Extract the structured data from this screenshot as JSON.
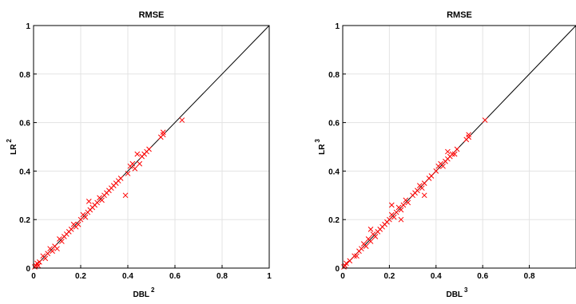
{
  "chart_data": [
    {
      "type": "scatter",
      "title": "RMSE",
      "xlabel": {
        "base": "DBL",
        "sup": "2"
      },
      "ylabel": {
        "base": "LR",
        "sup": "2"
      },
      "xlim": [
        0,
        1
      ],
      "ylim": [
        0,
        1
      ],
      "xticks": [
        "0",
        "0.2",
        "0.4",
        "0.6",
        "0.8",
        "1"
      ],
      "yticks": [
        "0",
        "0.2",
        "0.4",
        "0.6",
        "0.8",
        "1"
      ],
      "grid": true,
      "reference_line": {
        "x": [
          0,
          1
        ],
        "y": [
          0,
          1
        ],
        "color": "#000000"
      },
      "marker": "x",
      "marker_color": "#ff0000",
      "points": [
        [
          0.005,
          0.005
        ],
        [
          0.01,
          0.01
        ],
        [
          0.015,
          0.02
        ],
        [
          0.02,
          0.01
        ],
        [
          0.025,
          0.025
        ],
        [
          0.04,
          0.05
        ],
        [
          0.05,
          0.04
        ],
        [
          0.06,
          0.06
        ],
        [
          0.07,
          0.08
        ],
        [
          0.08,
          0.07
        ],
        [
          0.09,
          0.09
        ],
        [
          0.1,
          0.08
        ],
        [
          0.11,
          0.12
        ],
        [
          0.12,
          0.11
        ],
        [
          0.13,
          0.13
        ],
        [
          0.14,
          0.14
        ],
        [
          0.15,
          0.15
        ],
        [
          0.16,
          0.16
        ],
        [
          0.17,
          0.18
        ],
        [
          0.18,
          0.17
        ],
        [
          0.19,
          0.18
        ],
        [
          0.2,
          0.2
        ],
        [
          0.21,
          0.22
        ],
        [
          0.22,
          0.21
        ],
        [
          0.23,
          0.23
        ],
        [
          0.235,
          0.275
        ],
        [
          0.24,
          0.24
        ],
        [
          0.25,
          0.25
        ],
        [
          0.26,
          0.26
        ],
        [
          0.27,
          0.27
        ],
        [
          0.28,
          0.29
        ],
        [
          0.29,
          0.28
        ],
        [
          0.3,
          0.3
        ],
        [
          0.31,
          0.31
        ],
        [
          0.32,
          0.32
        ],
        [
          0.33,
          0.33
        ],
        [
          0.34,
          0.34
        ],
        [
          0.35,
          0.35
        ],
        [
          0.36,
          0.36
        ],
        [
          0.37,
          0.37
        ],
        [
          0.39,
          0.3
        ],
        [
          0.4,
          0.39
        ],
        [
          0.41,
          0.42
        ],
        [
          0.42,
          0.43
        ],
        [
          0.43,
          0.41
        ],
        [
          0.44,
          0.47
        ],
        [
          0.45,
          0.43
        ],
        [
          0.46,
          0.46
        ],
        [
          0.47,
          0.47
        ],
        [
          0.48,
          0.48
        ],
        [
          0.49,
          0.49
        ],
        [
          0.54,
          0.54
        ],
        [
          0.55,
          0.55
        ],
        [
          0.55,
          0.56
        ],
        [
          0.63,
          0.61
        ]
      ]
    },
    {
      "type": "scatter",
      "title": "RMSE",
      "xlabel": {
        "base": "DBL",
        "sup": "3"
      },
      "ylabel": {
        "base": "LR",
        "sup": "3"
      },
      "xlim": [
        0,
        1
      ],
      "ylim": [
        0,
        1
      ],
      "xticks": [
        "0",
        "0.2",
        "0.4",
        "0.6",
        "0.8"
      ],
      "yticks": [
        "0",
        "0.2",
        "0.4",
        "0.6",
        "0.8",
        "1"
      ],
      "grid": true,
      "reference_line": {
        "x": [
          0,
          1
        ],
        "y": [
          0,
          1
        ],
        "color": "#000000"
      },
      "marker": "x",
      "marker_color": "#ff0000",
      "points": [
        [
          0.005,
          0.005
        ],
        [
          0.01,
          0.01
        ],
        [
          0.015,
          0.02
        ],
        [
          0.03,
          0.03
        ],
        [
          0.05,
          0.05
        ],
        [
          0.06,
          0.05
        ],
        [
          0.07,
          0.07
        ],
        [
          0.08,
          0.08
        ],
        [
          0.09,
          0.1
        ],
        [
          0.1,
          0.09
        ],
        [
          0.11,
          0.12
        ],
        [
          0.12,
          0.11
        ],
        [
          0.13,
          0.14
        ],
        [
          0.14,
          0.13
        ],
        [
          0.15,
          0.15
        ],
        [
          0.16,
          0.16
        ],
        [
          0.17,
          0.17
        ],
        [
          0.18,
          0.18
        ],
        [
          0.19,
          0.19
        ],
        [
          0.2,
          0.2
        ],
        [
          0.21,
          0.22
        ],
        [
          0.22,
          0.21
        ],
        [
          0.23,
          0.23
        ],
        [
          0.24,
          0.25
        ],
        [
          0.25,
          0.24
        ],
        [
          0.26,
          0.26
        ],
        [
          0.27,
          0.28
        ],
        [
          0.28,
          0.27
        ],
        [
          0.3,
          0.3
        ],
        [
          0.31,
          0.31
        ],
        [
          0.32,
          0.32
        ],
        [
          0.33,
          0.34
        ],
        [
          0.34,
          0.33
        ],
        [
          0.35,
          0.35
        ],
        [
          0.37,
          0.37
        ],
        [
          0.38,
          0.38
        ],
        [
          0.4,
          0.4
        ],
        [
          0.41,
          0.42
        ],
        [
          0.42,
          0.43
        ],
        [
          0.43,
          0.42
        ],
        [
          0.44,
          0.44
        ],
        [
          0.45,
          0.45
        ],
        [
          0.46,
          0.46
        ],
        [
          0.47,
          0.47
        ],
        [
          0.48,
          0.47
        ],
        [
          0.49,
          0.49
        ],
        [
          0.53,
          0.53
        ],
        [
          0.54,
          0.54
        ],
        [
          0.54,
          0.55
        ],
        [
          0.61,
          0.61
        ],
        [
          0.21,
          0.26
        ],
        [
          0.25,
          0.2
        ],
        [
          0.12,
          0.16
        ],
        [
          0.35,
          0.3
        ],
        [
          0.45,
          0.48
        ]
      ]
    }
  ]
}
